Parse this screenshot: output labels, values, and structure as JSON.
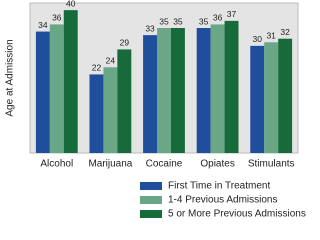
{
  "chart_data": {
    "type": "bar",
    "y_label": "Age at Admission",
    "categories": [
      "Alcohol",
      "Marijuana",
      "Cocaine",
      "Opiates",
      "Stimulants"
    ],
    "series": [
      {
        "name": "First Time in Treatment",
        "color": "#1f4e9c",
        "values": [
          34,
          22,
          33,
          35,
          30
        ]
      },
      {
        "name": "1-4 Previous Admissions",
        "color": "#6aa787",
        "values": [
          36,
          24,
          35,
          36,
          31
        ]
      },
      {
        "name": "5 or More Previous Admissions",
        "color": "#176b3a",
        "values": [
          40,
          29,
          35,
          37,
          32
        ]
      }
    ],
    "ylim": [
      0,
      42
    ]
  }
}
